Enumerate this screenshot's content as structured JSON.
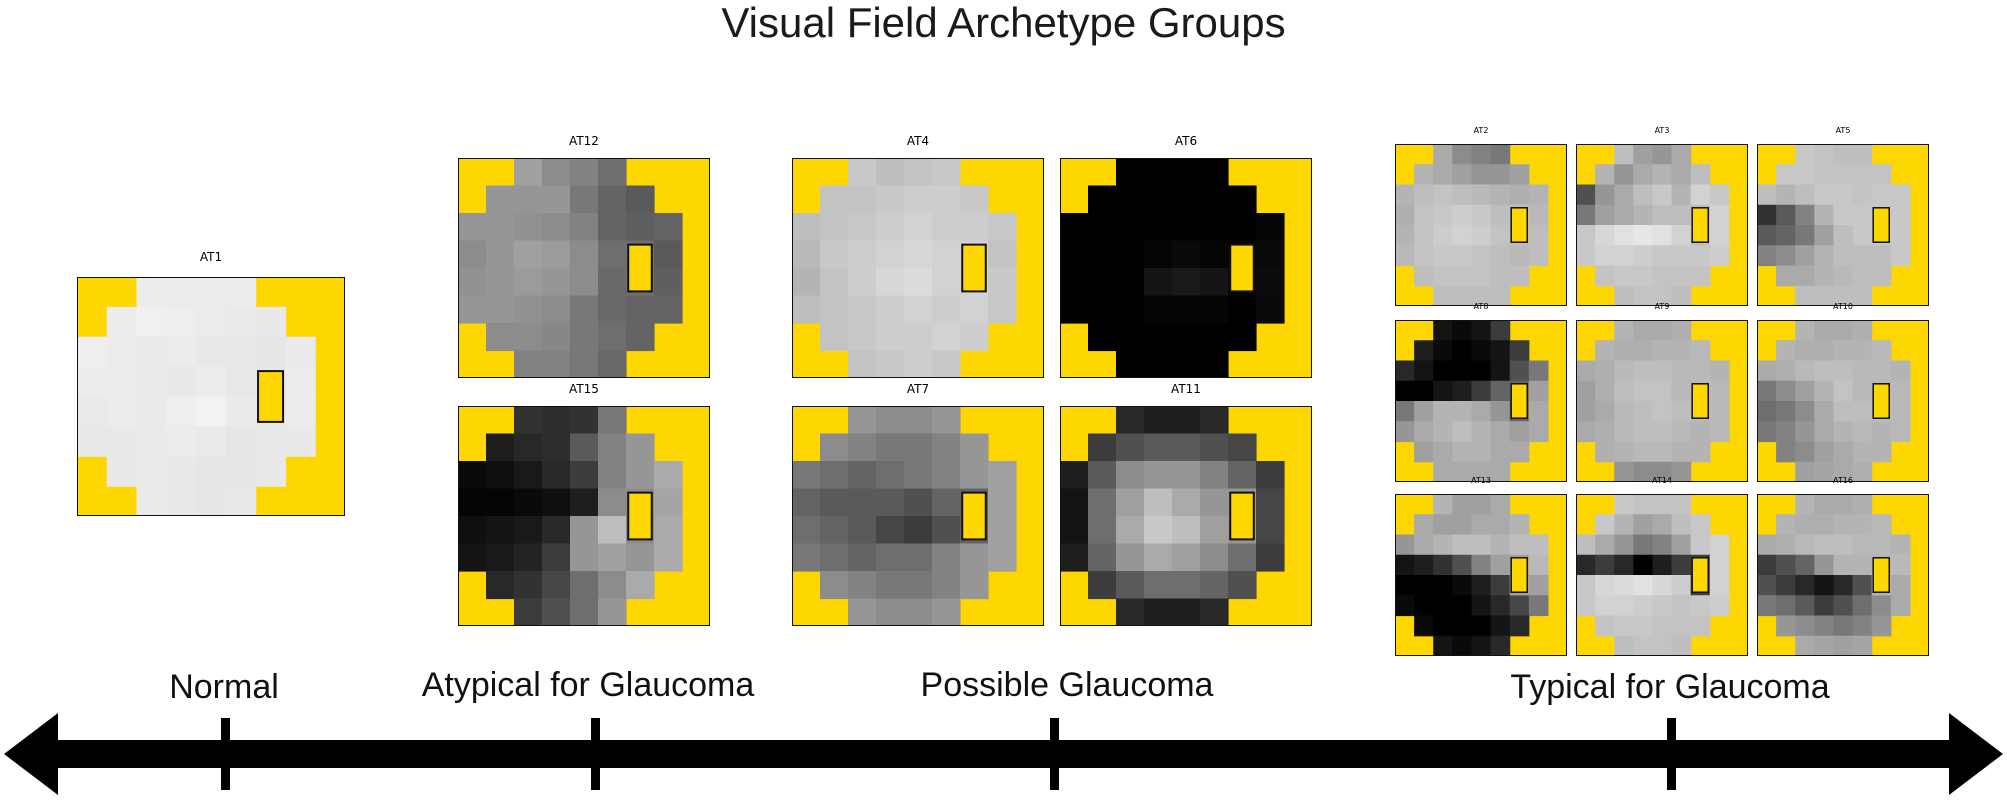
{
  "title": "Visual Field Archetype Groups",
  "colors": {
    "blind_spot_fill": "#FFD700",
    "corner_fill": "#FFD700",
    "border": "#111111",
    "axis": "#000000"
  },
  "categories": [
    {
      "label": "Normal"
    },
    {
      "label": "Atypical for Glaucoma"
    },
    {
      "label": "Possible Glaucoma"
    },
    {
      "label": "Typical for Glaucoma"
    }
  ],
  "archetypes": [
    {
      "label": "AT1",
      "grid": [
        [
          236,
          236,
          236,
          236
        ],
        [
          236,
          240,
          238,
          236,
          234,
          232
        ],
        [
          238,
          236,
          234,
          236,
          232,
          232,
          230,
          234
        ],
        [
          236,
          236,
          234,
          232,
          236,
          232,
          -1,
          236
        ],
        [
          234,
          236,
          234,
          238,
          242,
          234,
          -1,
          236
        ],
        [
          232,
          232,
          234,
          236,
          234,
          230,
          232,
          232
        ],
        [
          232,
          234,
          232,
          230,
          230,
          232
        ],
        [
          234,
          232,
          230,
          232
        ]
      ]
    },
    {
      "label": "AT12",
      "grid": [
        [
          160,
          140,
          130,
          110
        ],
        [
          150,
          150,
          150,
          120,
          100,
          90
        ],
        [
          150,
          150,
          145,
          140,
          130,
          100,
          95,
          100
        ],
        [
          140,
          150,
          160,
          155,
          140,
          110,
          -1,
          90
        ],
        [
          145,
          150,
          155,
          150,
          140,
          105,
          -1,
          95
        ],
        [
          150,
          150,
          145,
          140,
          120,
          105,
          100,
          100
        ],
        [
          140,
          140,
          135,
          120,
          110,
          100
        ],
        [
          130,
          130,
          120,
          105
        ]
      ]
    },
    {
      "label": "AT15",
      "grid": [
        [
          50,
          45,
          50,
          120
        ],
        [
          30,
          40,
          45,
          90,
          130,
          150
        ],
        [
          10,
          15,
          25,
          40,
          60,
          130,
          150,
          170
        ],
        [
          5,
          5,
          10,
          15,
          30,
          140,
          -1,
          165
        ],
        [
          15,
          20,
          25,
          40,
          150,
          190,
          -1,
          170
        ],
        [
          20,
          25,
          35,
          60,
          150,
          160,
          150,
          170
        ],
        [
          40,
          50,
          70,
          110,
          140,
          170
        ],
        [
          60,
          80,
          110,
          150
        ]
      ]
    },
    {
      "label": "AT4",
      "grid": [
        [
          200,
          190,
          195,
          200
        ],
        [
          195,
          195,
          200,
          205,
          205,
          200
        ],
        [
          190,
          195,
          200,
          205,
          210,
          205,
          205,
          200
        ],
        [
          185,
          200,
          205,
          210,
          215,
          210,
          -1,
          195
        ],
        [
          180,
          195,
          205,
          215,
          220,
          210,
          -1,
          200
        ],
        [
          190,
          195,
          200,
          205,
          210,
          205,
          210,
          200
        ],
        [
          195,
          200,
          205,
          205,
          210,
          205
        ],
        [
          195,
          200,
          205,
          200
        ]
      ]
    },
    {
      "label": "AT6",
      "grid": [
        [
          0,
          0,
          0,
          0
        ],
        [
          0,
          0,
          0,
          0,
          0,
          0
        ],
        [
          0,
          0,
          0,
          0,
          0,
          0,
          0,
          5
        ],
        [
          0,
          0,
          0,
          5,
          10,
          5,
          -1,
          10
        ],
        [
          0,
          0,
          0,
          20,
          25,
          20,
          -1,
          12
        ],
        [
          0,
          0,
          0,
          5,
          5,
          5,
          0,
          10
        ],
        [
          0,
          0,
          0,
          0,
          0,
          0
        ],
        [
          0,
          0,
          0,
          0
        ]
      ]
    },
    {
      "label": "AT7",
      "grid": [
        [
          150,
          140,
          140,
          150
        ],
        [
          140,
          130,
          120,
          120,
          130,
          150
        ],
        [
          120,
          110,
          100,
          110,
          120,
          130,
          150,
          160
        ],
        [
          100,
          90,
          90,
          90,
          80,
          100,
          -1,
          160
        ],
        [
          110,
          100,
          90,
          70,
          60,
          80,
          -1,
          160
        ],
        [
          120,
          110,
          100,
          110,
          110,
          130,
          150,
          160
        ],
        [
          140,
          130,
          120,
          120,
          130,
          150
        ],
        [
          150,
          140,
          140,
          150
        ]
      ]
    },
    {
      "label": "AT11",
      "grid": [
        [
          40,
          30,
          30,
          40
        ],
        [
          60,
          80,
          90,
          90,
          80,
          70
        ],
        [
          30,
          90,
          140,
          150,
          150,
          130,
          100,
          60
        ],
        [
          20,
          110,
          160,
          190,
          170,
          150,
          -1,
          70
        ],
        [
          20,
          110,
          170,
          200,
          190,
          160,
          -1,
          70
        ],
        [
          30,
          100,
          150,
          170,
          160,
          140,
          110,
          60
        ],
        [
          60,
          90,
          110,
          110,
          100,
          80
        ],
        [
          40,
          30,
          30,
          40
        ]
      ]
    },
    {
      "label": "AT2",
      "grid": [
        [
          170,
          140,
          130,
          120
        ],
        [
          180,
          170,
          160,
          150,
          150,
          160
        ],
        [
          180,
          190,
          195,
          190,
          185,
          180,
          175,
          180
        ],
        [
          175,
          195,
          200,
          205,
          200,
          190,
          -1,
          185
        ],
        [
          180,
          195,
          205,
          210,
          205,
          195,
          -1,
          190
        ],
        [
          185,
          195,
          200,
          200,
          195,
          190,
          185,
          190
        ],
        [
          190,
          195,
          195,
          195,
          190,
          190
        ],
        [
          190,
          190,
          190,
          190
        ]
      ]
    },
    {
      "label": "AT3",
      "grid": [
        [
          190,
          160,
          150,
          170
        ],
        [
          180,
          150,
          170,
          180,
          170,
          190
        ],
        [
          80,
          150,
          170,
          190,
          200,
          180,
          210,
          200
        ],
        [
          120,
          160,
          170,
          180,
          190,
          190,
          -1,
          210
        ],
        [
          200,
          215,
          225,
          230,
          225,
          210,
          -1,
          210
        ],
        [
          200,
          210,
          210,
          205,
          200,
          200,
          200,
          205
        ],
        [
          195,
          200,
          200,
          195,
          195,
          195
        ],
        [
          190,
          195,
          195,
          190
        ]
      ]
    },
    {
      "label": "AT5",
      "grid": [
        [
          200,
          195,
          190,
          190
        ],
        [
          200,
          200,
          195,
          195,
          195,
          195
        ],
        [
          190,
          180,
          190,
          200,
          200,
          195,
          200,
          200
        ],
        [
          50,
          90,
          130,
          180,
          200,
          200,
          -1,
          200
        ],
        [
          90,
          100,
          120,
          160,
          190,
          200,
          -1,
          200
        ],
        [
          130,
          140,
          160,
          180,
          190,
          190,
          190,
          200
        ],
        [
          170,
          170,
          180,
          185,
          190,
          190
        ],
        [
          190,
          190,
          190,
          190
        ]
      ]
    },
    {
      "label": "AT8",
      "grid": [
        [
          20,
          10,
          20,
          60
        ],
        [
          30,
          10,
          0,
          10,
          20,
          60
        ],
        [
          40,
          20,
          0,
          0,
          0,
          20,
          80,
          120
        ],
        [
          0,
          0,
          20,
          30,
          60,
          100,
          -1,
          160
        ],
        [
          120,
          160,
          180,
          180,
          170,
          150,
          -1,
          170
        ],
        [
          150,
          170,
          180,
          190,
          180,
          170,
          160,
          170
        ],
        [
          160,
          170,
          180,
          180,
          170,
          170
        ],
        [
          170,
          170,
          170,
          170
        ]
      ]
    },
    {
      "label": "AT9",
      "grid": [
        [
          180,
          170,
          170,
          175
        ],
        [
          180,
          175,
          175,
          180,
          180,
          185
        ],
        [
          170,
          175,
          185,
          190,
          190,
          185,
          185,
          180
        ],
        [
          160,
          175,
          190,
          195,
          195,
          185,
          -1,
          185
        ],
        [
          160,
          170,
          185,
          190,
          195,
          190,
          -1,
          185
        ],
        [
          170,
          175,
          185,
          190,
          190,
          185,
          180,
          185
        ],
        [
          175,
          180,
          185,
          185,
          180,
          180
        ],
        [
          150,
          140,
          140,
          150
        ]
      ]
    },
    {
      "label": "AT10",
      "grid": [
        [
          180,
          170,
          170,
          175
        ],
        [
          180,
          175,
          175,
          180,
          180,
          185
        ],
        [
          170,
          175,
          185,
          190,
          190,
          185,
          185,
          180
        ],
        [
          120,
          140,
          160,
          180,
          195,
          185,
          -1,
          185
        ],
        [
          110,
          120,
          140,
          170,
          190,
          190,
          -1,
          185
        ],
        [
          120,
          130,
          150,
          170,
          180,
          185,
          180,
          185
        ],
        [
          130,
          140,
          160,
          170,
          180,
          180
        ],
        [
          160,
          165,
          170,
          175
        ]
      ]
    },
    {
      "label": "AT13",
      "grid": [
        [
          180,
          160,
          160,
          170
        ],
        [
          170,
          160,
          160,
          170,
          170,
          180
        ],
        [
          150,
          170,
          180,
          190,
          190,
          180,
          190,
          190
        ],
        [
          20,
          30,
          50,
          80,
          130,
          160,
          -1,
          185
        ],
        [
          0,
          0,
          0,
          10,
          30,
          60,
          -1,
          160
        ],
        [
          10,
          0,
          0,
          0,
          20,
          40,
          70,
          120
        ],
        [
          10,
          0,
          0,
          0,
          20,
          40
        ],
        [
          20,
          10,
          20,
          40
        ]
      ]
    },
    {
      "label": "AT14",
      "grid": [
        [
          200,
          195,
          195,
          195
        ],
        [
          200,
          180,
          160,
          170,
          190,
          200
        ],
        [
          190,
          170,
          150,
          120,
          130,
          160,
          200,
          210
        ],
        [
          40,
          60,
          40,
          0,
          30,
          60,
          -1,
          210
        ],
        [
          200,
          215,
          220,
          225,
          215,
          205,
          -1,
          210
        ],
        [
          200,
          210,
          210,
          205,
          200,
          195,
          200,
          205
        ],
        [
          195,
          200,
          200,
          195,
          195,
          195
        ],
        [
          190,
          195,
          195,
          190
        ]
      ]
    },
    {
      "label": "AT16",
      "grid": [
        [
          180,
          170,
          170,
          175
        ],
        [
          180,
          175,
          175,
          180,
          180,
          185
        ],
        [
          170,
          175,
          185,
          190,
          190,
          185,
          185,
          180
        ],
        [
          60,
          80,
          100,
          150,
          180,
          180,
          -1,
          185
        ],
        [
          80,
          60,
          40,
          20,
          40,
          80,
          -1,
          170
        ],
        [
          120,
          110,
          90,
          60,
          80,
          110,
          140,
          170
        ],
        [
          150,
          140,
          130,
          120,
          130,
          150
        ],
        [
          170,
          165,
          160,
          165
        ]
      ]
    }
  ]
}
